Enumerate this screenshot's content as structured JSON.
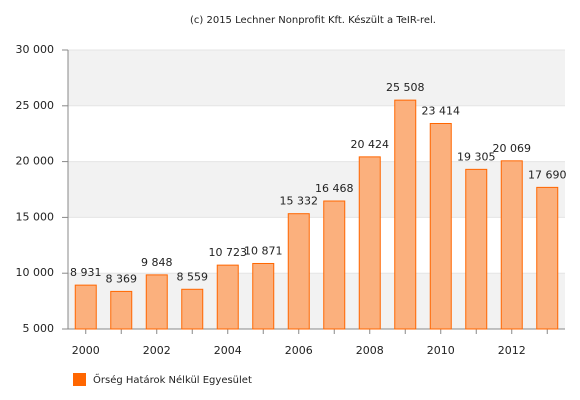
{
  "chart_data": {
    "type": "bar",
    "title": "(c) 2015 Lechner Nonprofit Kft. Készült a TeIR-rel.",
    "categories": [
      "2000",
      null,
      "2002",
      null,
      "2004",
      null,
      "2006",
      null,
      "2008",
      null,
      "2010",
      null,
      "2012",
      null
    ],
    "series": [
      {
        "name": "Őrség Határok Nélkül Egyesület",
        "color": "#ff6600",
        "values": [
          8931,
          8369,
          9848,
          8559,
          10723,
          10871,
          15332,
          16468,
          20424,
          25508,
          23414,
          19305,
          20069,
          17690
        ],
        "value_labels": [
          "8 931",
          "8 369",
          "9 848",
          "8 559",
          "10 723",
          "10 871",
          "15 332",
          "16 468",
          "20 424",
          "25 508",
          "23 414",
          "19 305",
          "20 069",
          "17 690"
        ]
      }
    ],
    "ylim": [
      5000,
      30000
    ],
    "yticks": [
      {
        "value": 5000,
        "label": "5 000"
      },
      {
        "value": 10000,
        "label": "10 000"
      },
      {
        "value": 15000,
        "label": "15 000"
      },
      {
        "value": 20000,
        "label": "20 000"
      },
      {
        "value": 25000,
        "label": "25 000"
      },
      {
        "value": 30000,
        "label": "30 000"
      }
    ],
    "grid": true
  }
}
